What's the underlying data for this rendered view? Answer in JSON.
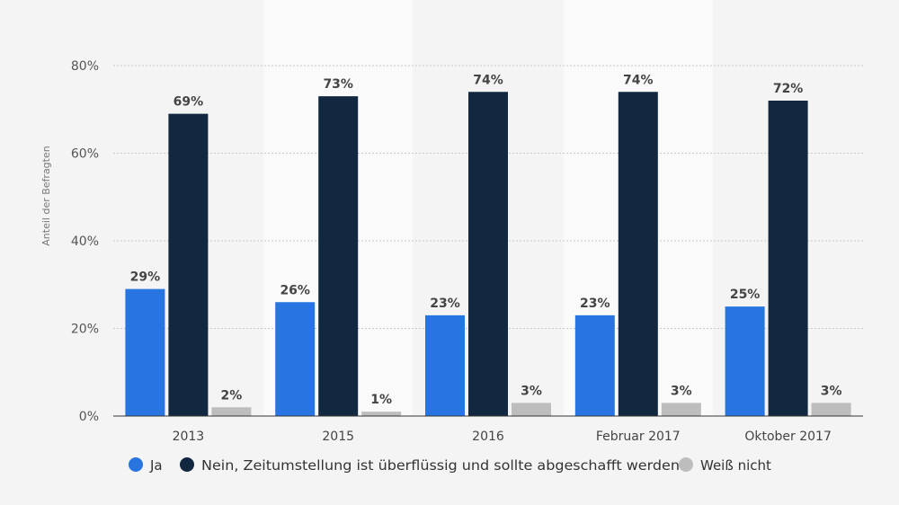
{
  "chart_data": {
    "type": "bar",
    "title": "",
    "xlabel": "",
    "ylabel": "Anteil der Befragten",
    "ylim": [
      0,
      80
    ],
    "yticks": [
      "0%",
      "20%",
      "40%",
      "60%",
      "80%"
    ],
    "value_suffix": "%",
    "grid": true,
    "legend_position": "bottom",
    "categories": [
      "2013",
      "2015",
      "2016",
      "Februar 2017",
      "Oktober 2017"
    ],
    "series": [
      {
        "name": "Ja",
        "color": "#2874e0",
        "values": [
          29,
          26,
          23,
          23,
          25
        ]
      },
      {
        "name": "Nein, Zeitumstellung ist überflüssig und sollte abgeschafft werden",
        "color": "#122840",
        "values": [
          69,
          73,
          74,
          74,
          72
        ]
      },
      {
        "name": "Weiß nicht",
        "color": "#bdbdbd",
        "values": [
          2,
          1,
          3,
          3,
          3
        ]
      }
    ]
  }
}
